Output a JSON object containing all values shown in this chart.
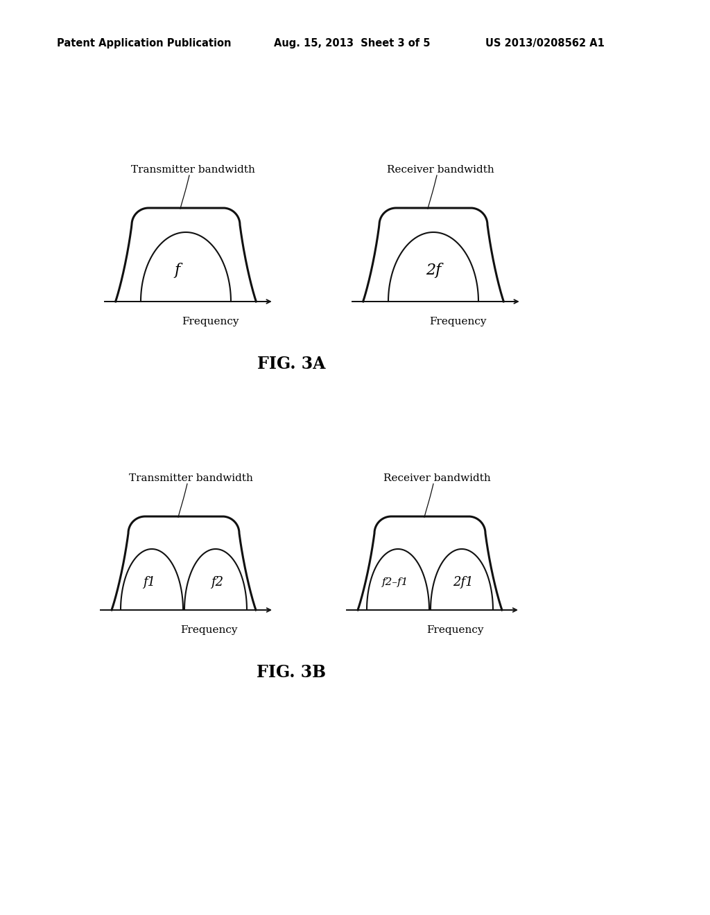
{
  "bg_color": "#ffffff",
  "header_left": "Patent Application Publication",
  "header_center": "Aug. 15, 2013  Sheet 3 of 5",
  "header_right": "US 2013/0208562 A1",
  "fig3a_label": "FIG. 3A",
  "fig3b_label": "FIG. 3B",
  "transmitter_label": "Transmitter bandwidth",
  "receiver_label": "Receiver bandwidth",
  "frequency_label": "Frequency",
  "fig3a_left_label": "f",
  "fig3a_right_label": "2f",
  "fig3b_left_labels": [
    "f1",
    "f2"
  ],
  "fig3b_right_labels": [
    "f2–f1",
    "2f1"
  ],
  "line_color": "#111111"
}
